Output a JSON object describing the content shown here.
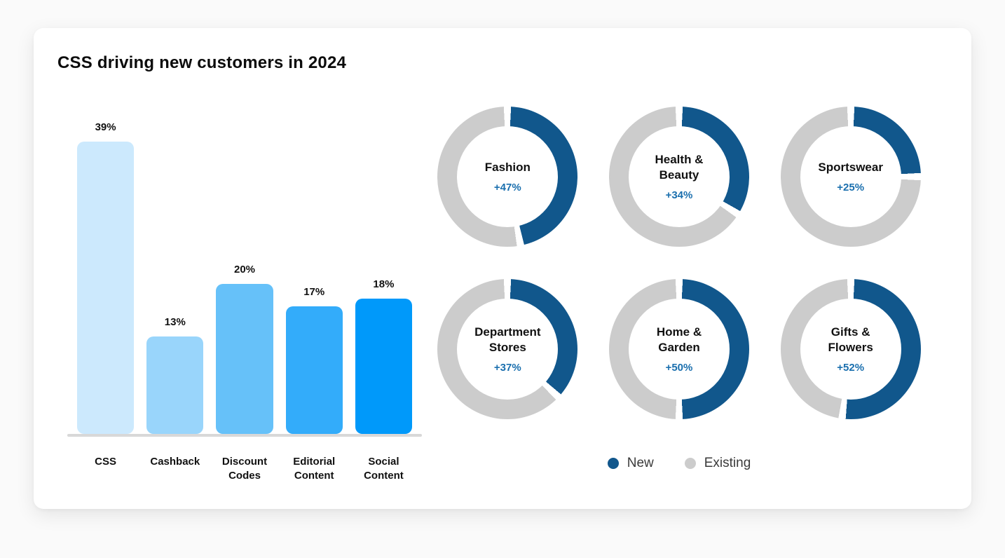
{
  "card": {
    "title": "CSS driving new customers in 2024"
  },
  "colors": {
    "new": "#11578c",
    "existing": "#cccccc",
    "pct_text": "#1a6fae",
    "axis": "#d8d8d8"
  },
  "chart_data": [
    {
      "type": "bar",
      "title": "CSS driving new customers in 2024",
      "categories": [
        "CSS",
        "Cashback",
        "Discount Codes",
        "Editorial Content",
        "Social Content"
      ],
      "values": [
        39,
        13,
        20,
        17,
        18
      ],
      "value_suffix": "%",
      "bar_colors": [
        "#cce9fd",
        "#99d5fb",
        "#66c1f9",
        "#33acfa",
        "#0099fa"
      ],
      "ylim": [
        0,
        42
      ],
      "grid": false
    },
    {
      "type": "pie",
      "subtype": "donut-grid",
      "segments": [
        "New",
        "Existing"
      ],
      "value_prefix": "+",
      "value_suffix": "%",
      "items": [
        {
          "label": "Fashion",
          "value": 47
        },
        {
          "label": "Health & Beauty",
          "value": 34
        },
        {
          "label": "Sportswear",
          "value": 25
        },
        {
          "label": "Department Stores",
          "value": 37
        },
        {
          "label": "Home & Garden",
          "value": 50
        },
        {
          "label": "Gifts & Flowers",
          "value": 52
        }
      ],
      "legend_position": "bottom"
    }
  ],
  "legend": {
    "items": [
      {
        "label": "New",
        "color": "#11578c"
      },
      {
        "label": "Existing",
        "color": "#cccccc"
      }
    ]
  }
}
